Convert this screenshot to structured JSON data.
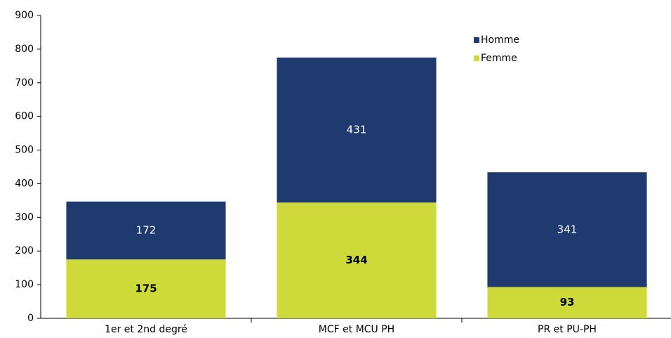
{
  "chart_data": {
    "type": "stacked_bar",
    "categories": [
      "1er et 2nd degré",
      "MCF et MCU PH",
      "PR et PU-PH"
    ],
    "series": [
      {
        "name": "Femme",
        "color": "#cdda3a",
        "values": [
          175,
          344,
          93
        ],
        "label_color": "#000000",
        "label_weight": "bold"
      },
      {
        "name": "Homme",
        "color": "#1f3a6f",
        "values": [
          172,
          431,
          341
        ],
        "label_color": "#ffffff",
        "label_weight": "normal"
      }
    ],
    "ylim": [
      0,
      900
    ],
    "yticks": [
      0,
      100,
      200,
      300,
      400,
      500,
      600,
      700,
      800,
      900
    ],
    "grid": false,
    "legend": "upper right"
  }
}
